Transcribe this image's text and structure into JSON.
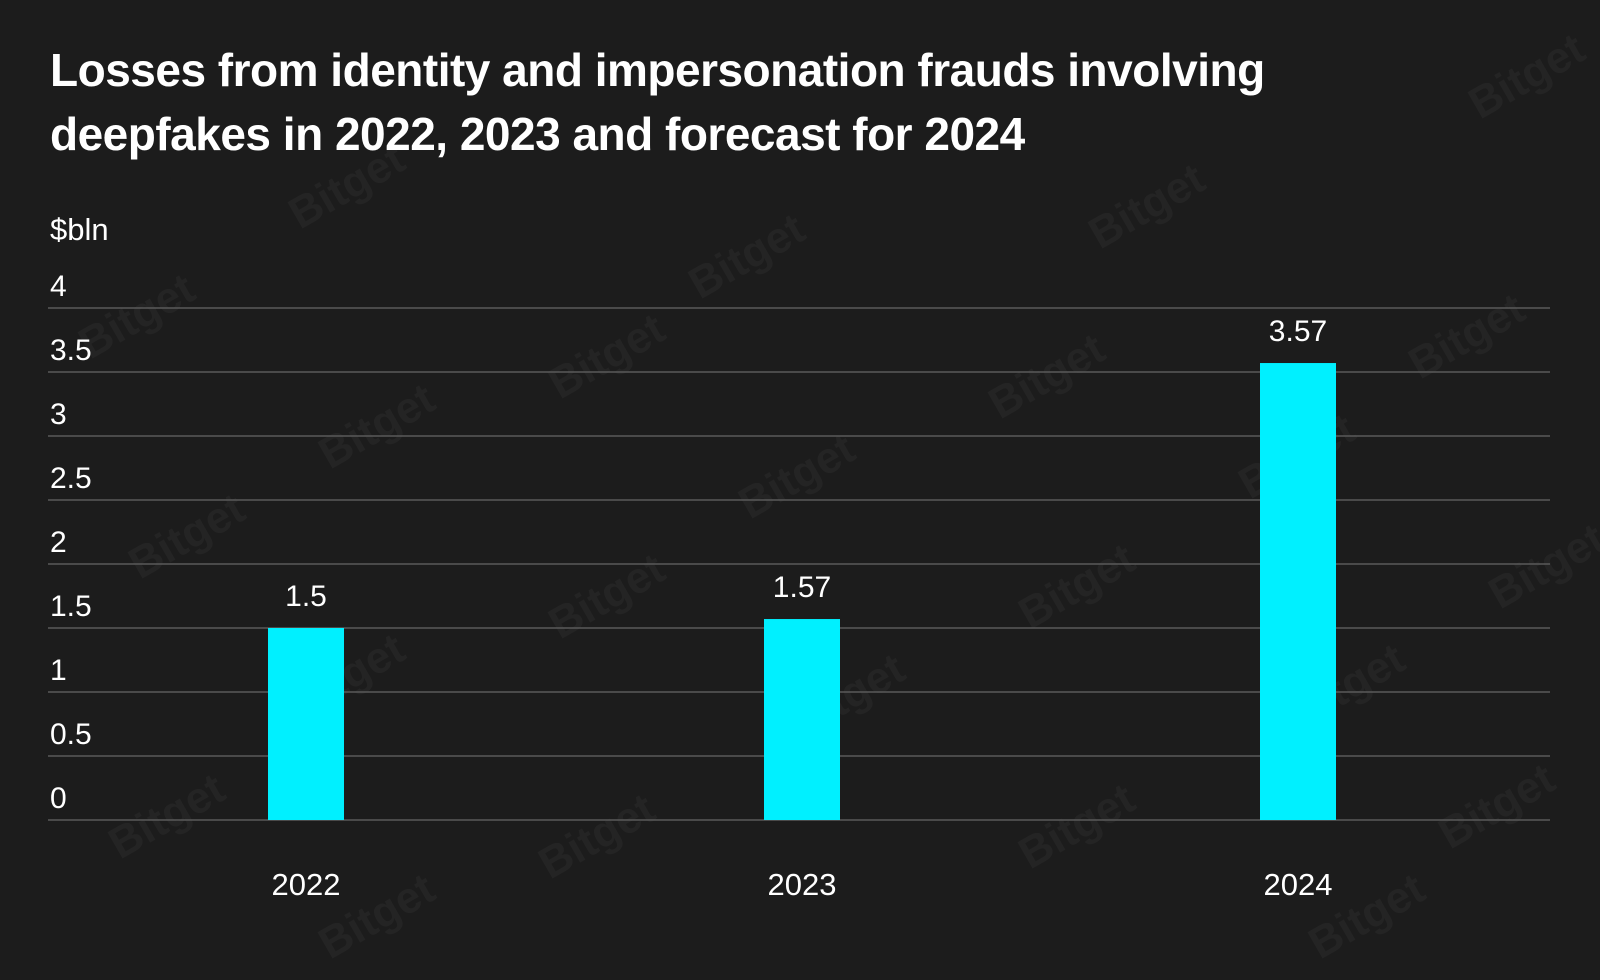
{
  "chart_data": {
    "type": "bar",
    "title": "Losses from identity and impersonation frauds involving deepfakes in 2022, 2023 and forecast for 2024",
    "ylabel": "$bln",
    "categories": [
      "2022",
      "2023",
      "2024"
    ],
    "values": [
      1.5,
      1.57,
      3.57
    ],
    "value_labels": [
      "1.5",
      "1.57",
      "3.57"
    ],
    "ylim": [
      0,
      4
    ],
    "yticks": [
      0,
      0.5,
      1,
      1.5,
      2,
      2.5,
      3,
      3.5,
      4
    ],
    "ytick_labels": [
      "0",
      "0.5",
      "1",
      "1.5",
      "2",
      "2.5",
      "3",
      "3.5",
      "4"
    ],
    "grid": true,
    "bar_color": "#00f0ff",
    "grid_color": "#5a5a5a",
    "background_color": "#1c1c1c",
    "watermark": "Bitget"
  }
}
